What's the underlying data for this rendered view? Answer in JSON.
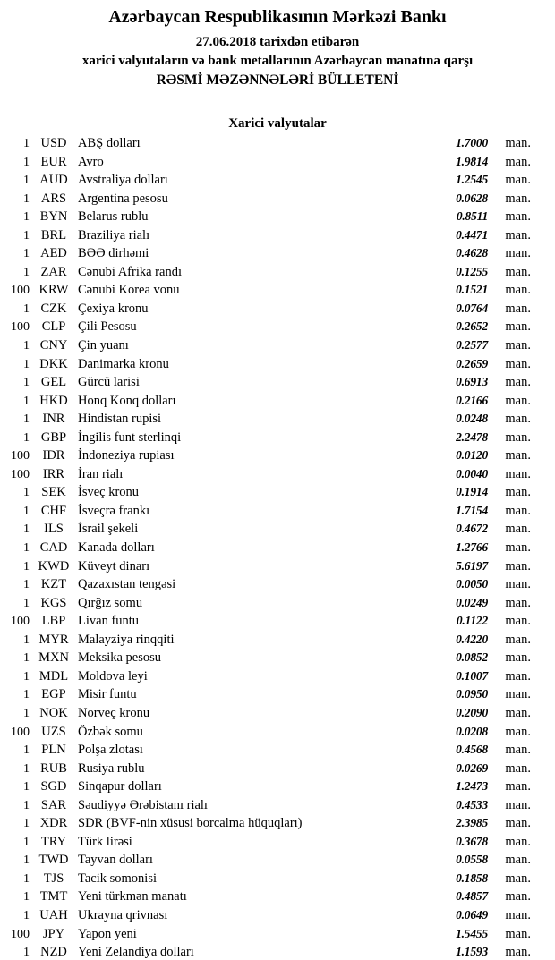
{
  "header": {
    "bank_name": "Azərbaycan Respublikasının Mərkəzi Bankı",
    "date_line": "27.06.2018 tarixdən etibarən",
    "subtitle": "xarici valyutaların və bank metallarının Azərbaycan manatına qarşı",
    "bulletin_title": "RƏSMİ MƏZƏNNƏLƏRİ BÜLLETENİ"
  },
  "section": {
    "title": "Xarici valyutalar"
  },
  "unit_label": "man.",
  "colors": {
    "text": "#000000",
    "background": "#ffffff"
  },
  "rates": [
    {
      "qty": "1",
      "code": "USD",
      "name": "ABŞ dolları",
      "rate": "1.7000"
    },
    {
      "qty": "1",
      "code": "EUR",
      "name": "Avro",
      "rate": "1.9814"
    },
    {
      "qty": "1",
      "code": "AUD",
      "name": "Avstraliya dolları",
      "rate": "1.2545"
    },
    {
      "qty": "1",
      "code": "ARS",
      "name": "Argentina pesosu",
      "rate": "0.0628"
    },
    {
      "qty": "1",
      "code": "BYN",
      "name": "Belarus rublu",
      "rate": "0.8511"
    },
    {
      "qty": "1",
      "code": "BRL",
      "name": "Braziliya rialı",
      "rate": "0.4471"
    },
    {
      "qty": "1",
      "code": "AED",
      "name": "BƏƏ dirhəmi",
      "rate": "0.4628"
    },
    {
      "qty": "1",
      "code": "ZAR",
      "name": "Cənubi Afrika randı",
      "rate": "0.1255"
    },
    {
      "qty": "100",
      "code": "KRW",
      "name": "Cənubi Korea vonu",
      "rate": "0.1521"
    },
    {
      "qty": "1",
      "code": "CZK",
      "name": "Çexiya kronu",
      "rate": "0.0764"
    },
    {
      "qty": "100",
      "code": "CLP",
      "name": "Çili Pesosu",
      "rate": "0.2652"
    },
    {
      "qty": "1",
      "code": "CNY",
      "name": "Çin yuanı",
      "rate": "0.2577"
    },
    {
      "qty": "1",
      "code": "DKK",
      "name": "Danimarka kronu",
      "rate": "0.2659"
    },
    {
      "qty": "1",
      "code": "GEL",
      "name": "Gürcü larisi",
      "rate": "0.6913"
    },
    {
      "qty": "1",
      "code": "HKD",
      "name": "Honq Konq dolları",
      "rate": "0.2166"
    },
    {
      "qty": "1",
      "code": "INR",
      "name": "Hindistan rupisi",
      "rate": "0.0248"
    },
    {
      "qty": "1",
      "code": "GBP",
      "name": "İngilis funt sterlinqi",
      "rate": "2.2478"
    },
    {
      "qty": "100",
      "code": "IDR",
      "name": "İndoneziya rupiası",
      "rate": "0.0120"
    },
    {
      "qty": "100",
      "code": "IRR",
      "name": "İran rialı",
      "rate": "0.0040"
    },
    {
      "qty": "1",
      "code": "SEK",
      "name": "İsveç kronu",
      "rate": "0.1914"
    },
    {
      "qty": "1",
      "code": "CHF",
      "name": "İsveçrə frankı",
      "rate": "1.7154"
    },
    {
      "qty": "1",
      "code": "ILS",
      "name": "İsrail şekeli",
      "rate": "0.4672"
    },
    {
      "qty": "1",
      "code": "CAD",
      "name": "Kanada dolları",
      "rate": "1.2766"
    },
    {
      "qty": "1",
      "code": "KWD",
      "name": "Küveyt dinarı",
      "rate": "5.6197"
    },
    {
      "qty": "1",
      "code": "KZT",
      "name": "Qazaxıstan tengəsi",
      "rate": "0.0050"
    },
    {
      "qty": "1",
      "code": "KGS",
      "name": "Qırğız somu",
      "rate": "0.0249"
    },
    {
      "qty": "100",
      "code": "LBP",
      "name": "Livan funtu",
      "rate": "0.1122"
    },
    {
      "qty": "1",
      "code": "MYR",
      "name": "Malayziya rinqqiti",
      "rate": "0.4220"
    },
    {
      "qty": "1",
      "code": "MXN",
      "name": "Meksika pesosu",
      "rate": "0.0852"
    },
    {
      "qty": "1",
      "code": "MDL",
      "name": "Moldova leyi",
      "rate": "0.1007"
    },
    {
      "qty": "1",
      "code": "EGP",
      "name": "Misir funtu",
      "rate": "0.0950"
    },
    {
      "qty": "1",
      "code": "NOK",
      "name": "Norveç kronu",
      "rate": "0.2090"
    },
    {
      "qty": "100",
      "code": "UZS",
      "name": "Özbək somu",
      "rate": "0.0208"
    },
    {
      "qty": "1",
      "code": "PLN",
      "name": "Polşa zlotası",
      "rate": "0.4568"
    },
    {
      "qty": "1",
      "code": "RUB",
      "name": "Rusiya rublu",
      "rate": "0.0269"
    },
    {
      "qty": "1",
      "code": "SGD",
      "name": "Sinqapur dolları",
      "rate": "1.2473"
    },
    {
      "qty": "1",
      "code": "SAR",
      "name": "Səudiyyə Ərəbistanı rialı",
      "rate": "0.4533"
    },
    {
      "qty": "1",
      "code": "XDR",
      "name": "SDR (BVF-nin xüsusi borcalma hüquqları)",
      "rate": "2.3985"
    },
    {
      "qty": "1",
      "code": "TRY",
      "name": "Türk lirəsi",
      "rate": "0.3678"
    },
    {
      "qty": "1",
      "code": "TWD",
      "name": "Tayvan dolları",
      "rate": "0.0558"
    },
    {
      "qty": "1",
      "code": "TJS",
      "name": "Tacik somonisi",
      "rate": "0.1858"
    },
    {
      "qty": "1",
      "code": "TMT",
      "name": "Yeni türkmən manatı",
      "rate": "0.4857"
    },
    {
      "qty": "1",
      "code": "UAH",
      "name": "Ukrayna qrivnası",
      "rate": "0.0649"
    },
    {
      "qty": "100",
      "code": "JPY",
      "name": "Yapon yeni",
      "rate": "1.5455"
    },
    {
      "qty": "1",
      "code": "NZD",
      "name": "Yeni Zelandiya dolları",
      "rate": "1.1593"
    }
  ]
}
